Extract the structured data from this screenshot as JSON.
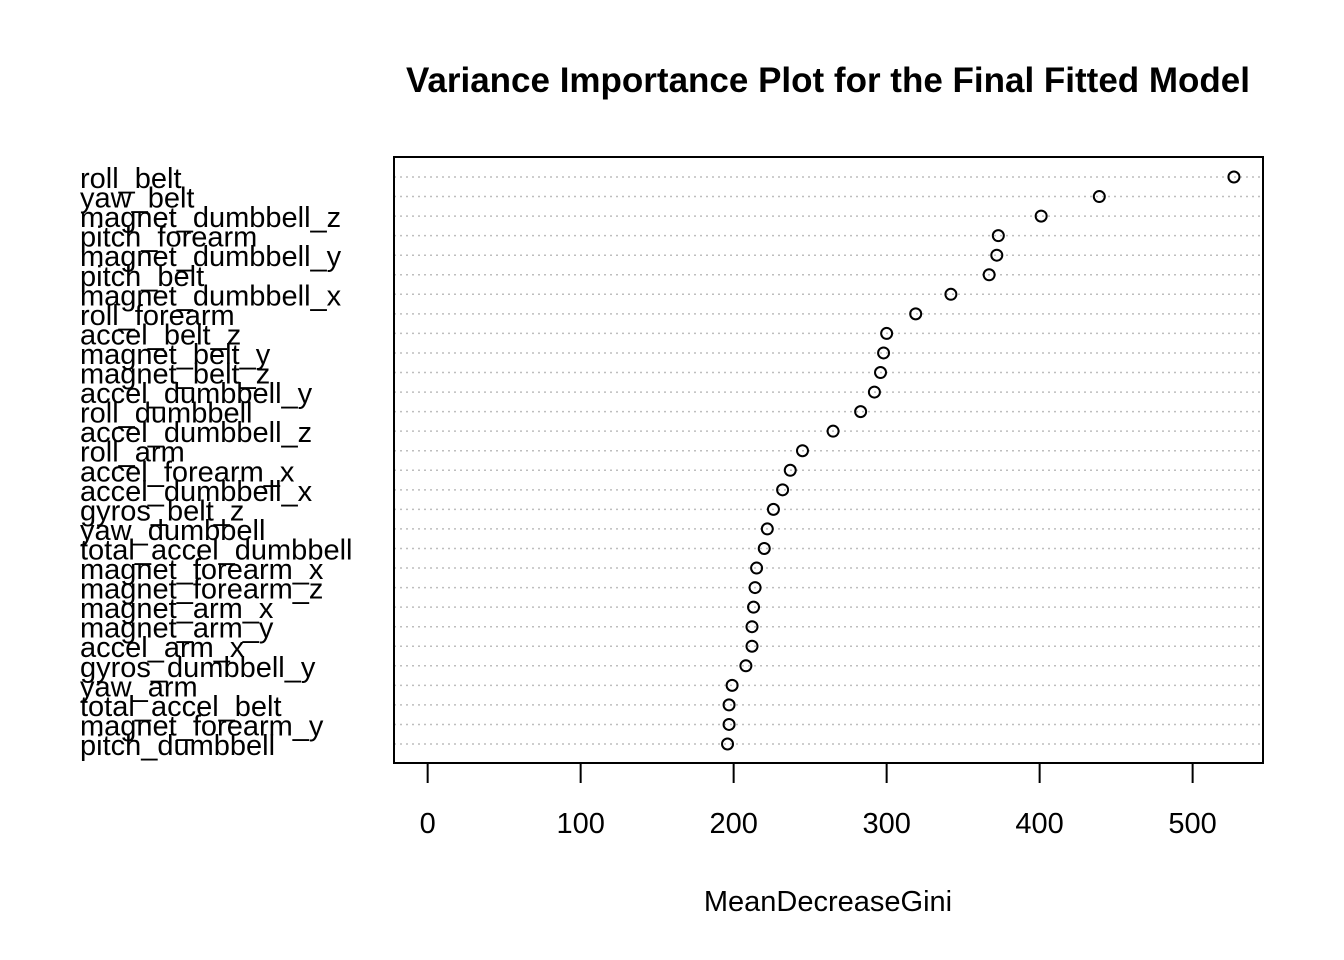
{
  "chart_data": {
    "type": "scatter",
    "subtype": "dotchart",
    "title": "Variance Importance Plot for the Final Fitted Model",
    "xlabel": "MeanDecreaseGini",
    "ylabel": "",
    "xlim": [
      -22,
      546
    ],
    "xticks": [
      0,
      100,
      200,
      300,
      400,
      500
    ],
    "xtick_labels": [
      "0",
      "100",
      "200",
      "300",
      "400",
      "500"
    ],
    "grid": "horizontal dotted lines at each variable",
    "legend": "none",
    "categories": [
      "roll_belt",
      "yaw_belt",
      "magnet_dumbbell_z",
      "pitch_forearm",
      "magnet_dumbbell_y",
      "pitch_belt",
      "magnet_dumbbell_x",
      "roll_forearm",
      "accel_belt_z",
      "magnet_belt_y",
      "magnet_belt_z",
      "accel_dumbbell_y",
      "roll_dumbbell",
      "accel_dumbbell_z",
      "roll_arm",
      "accel_forearm_x",
      "accel_dumbbell_x",
      "gyros_belt_z",
      "yaw_dumbbell",
      "total_accel_dumbbell",
      "magnet_forearm_x",
      "magnet_forearm_z",
      "magnet_arm_x",
      "magnet_arm_y",
      "accel_arm_x",
      "gyros_dumbbell_y",
      "yaw_arm",
      "total_accel_belt",
      "magnet_forearm_y",
      "pitch_dumbbell"
    ],
    "values": [
      527,
      439,
      401,
      373,
      372,
      367,
      342,
      319,
      300,
      298,
      296,
      292,
      283,
      265,
      245,
      237,
      232,
      226,
      222,
      220,
      215,
      214,
      213,
      212,
      212,
      208,
      199,
      197,
      197,
      196
    ]
  }
}
